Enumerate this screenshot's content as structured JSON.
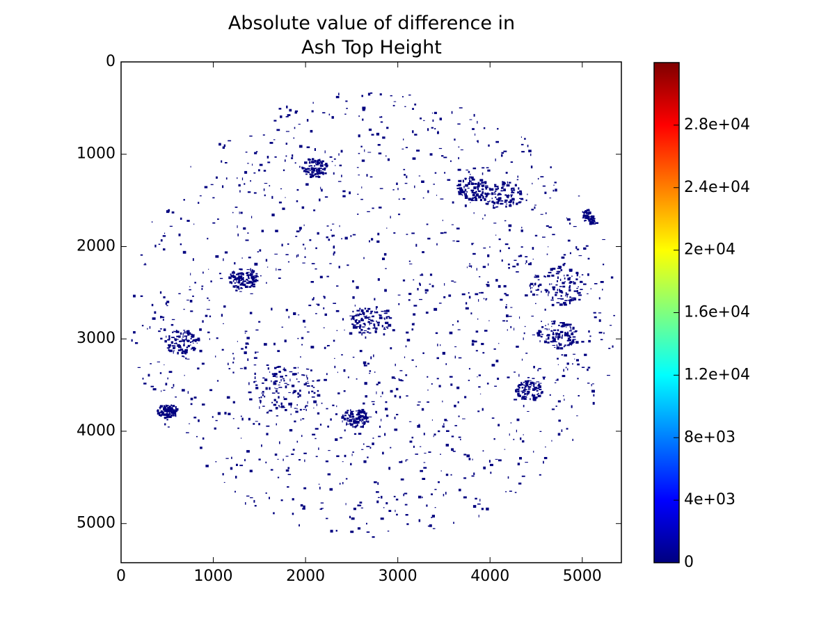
{
  "chart_data": {
    "type": "image",
    "title": "Absolute value of difference in\nAsh Top Height",
    "xlim": [
      0,
      5424
    ],
    "ylim": [
      5424,
      0
    ],
    "xticks": [
      0,
      1000,
      2000,
      3000,
      4000,
      5000
    ],
    "yticks": [
      0,
      1000,
      2000,
      3000,
      4000,
      5000
    ],
    "color": "#00007f",
    "colormap": "jet",
    "colorbar_lim": [
      0,
      32000
    ],
    "colorbar_ticks": [
      0,
      {
        "value": 4000,
        "label": "4e+03"
      },
      {
        "value": 8000,
        "label": "8e+03"
      },
      {
        "value": 12000,
        "label": "1.2e+04"
      },
      {
        "value": 16000,
        "label": "1.6e+04"
      },
      {
        "value": 20000,
        "label": "2e+04"
      },
      {
        "value": 24000,
        "label": "2.4e+04"
      },
      {
        "value": 28000,
        "label": "2.8e+04"
      }
    ]
  }
}
